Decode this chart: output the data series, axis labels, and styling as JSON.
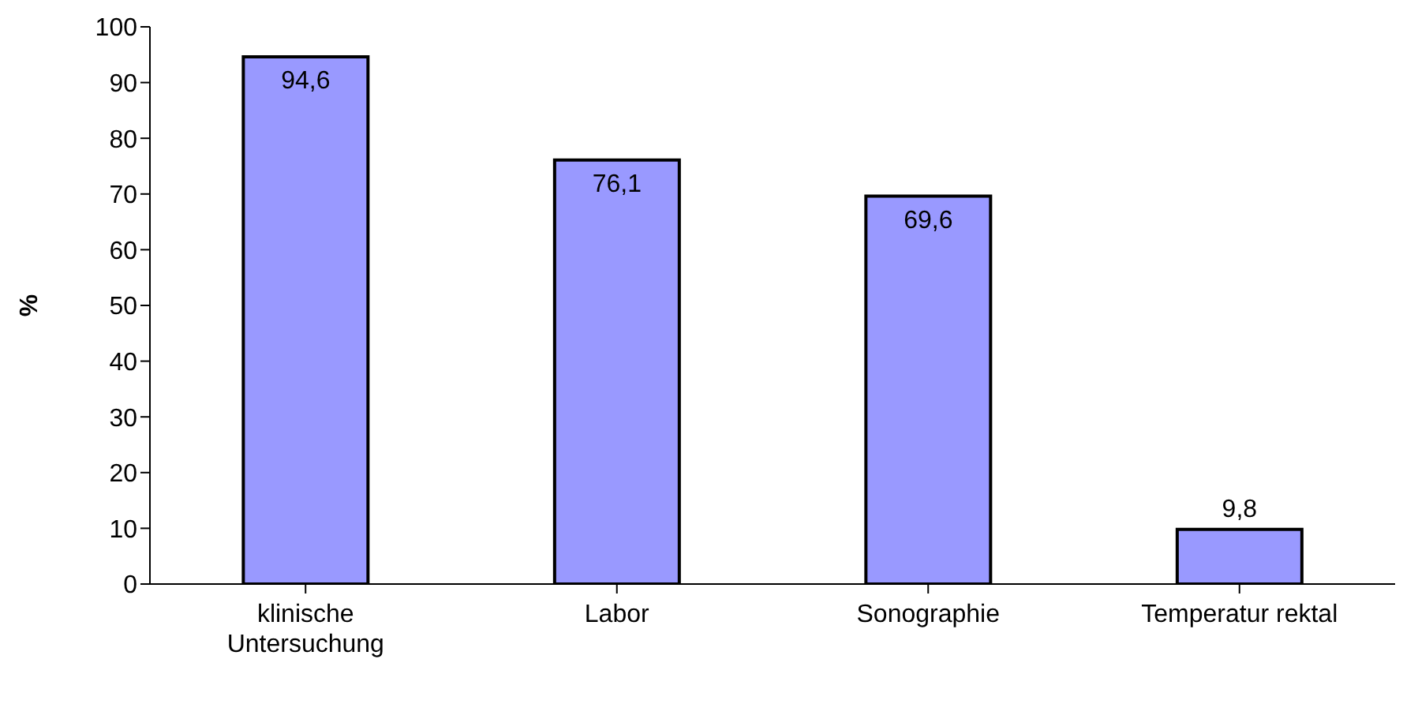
{
  "chart_data": {
    "type": "bar",
    "ylabel": "%",
    "categories": [
      "klinische Untersuchung",
      "Labor",
      "Sonographie",
      "Temperatur rektal"
    ],
    "values": [
      94.6,
      76.1,
      69.6,
      9.8
    ],
    "value_labels": [
      "94,6",
      "76,1",
      "69,6",
      "9,8"
    ],
    "color": "#9999ff",
    "ylim": [
      0,
      100
    ],
    "yticks": [
      0,
      10,
      20,
      30,
      40,
      50,
      60,
      70,
      80,
      90,
      100
    ],
    "grid": false,
    "legend": false
  }
}
